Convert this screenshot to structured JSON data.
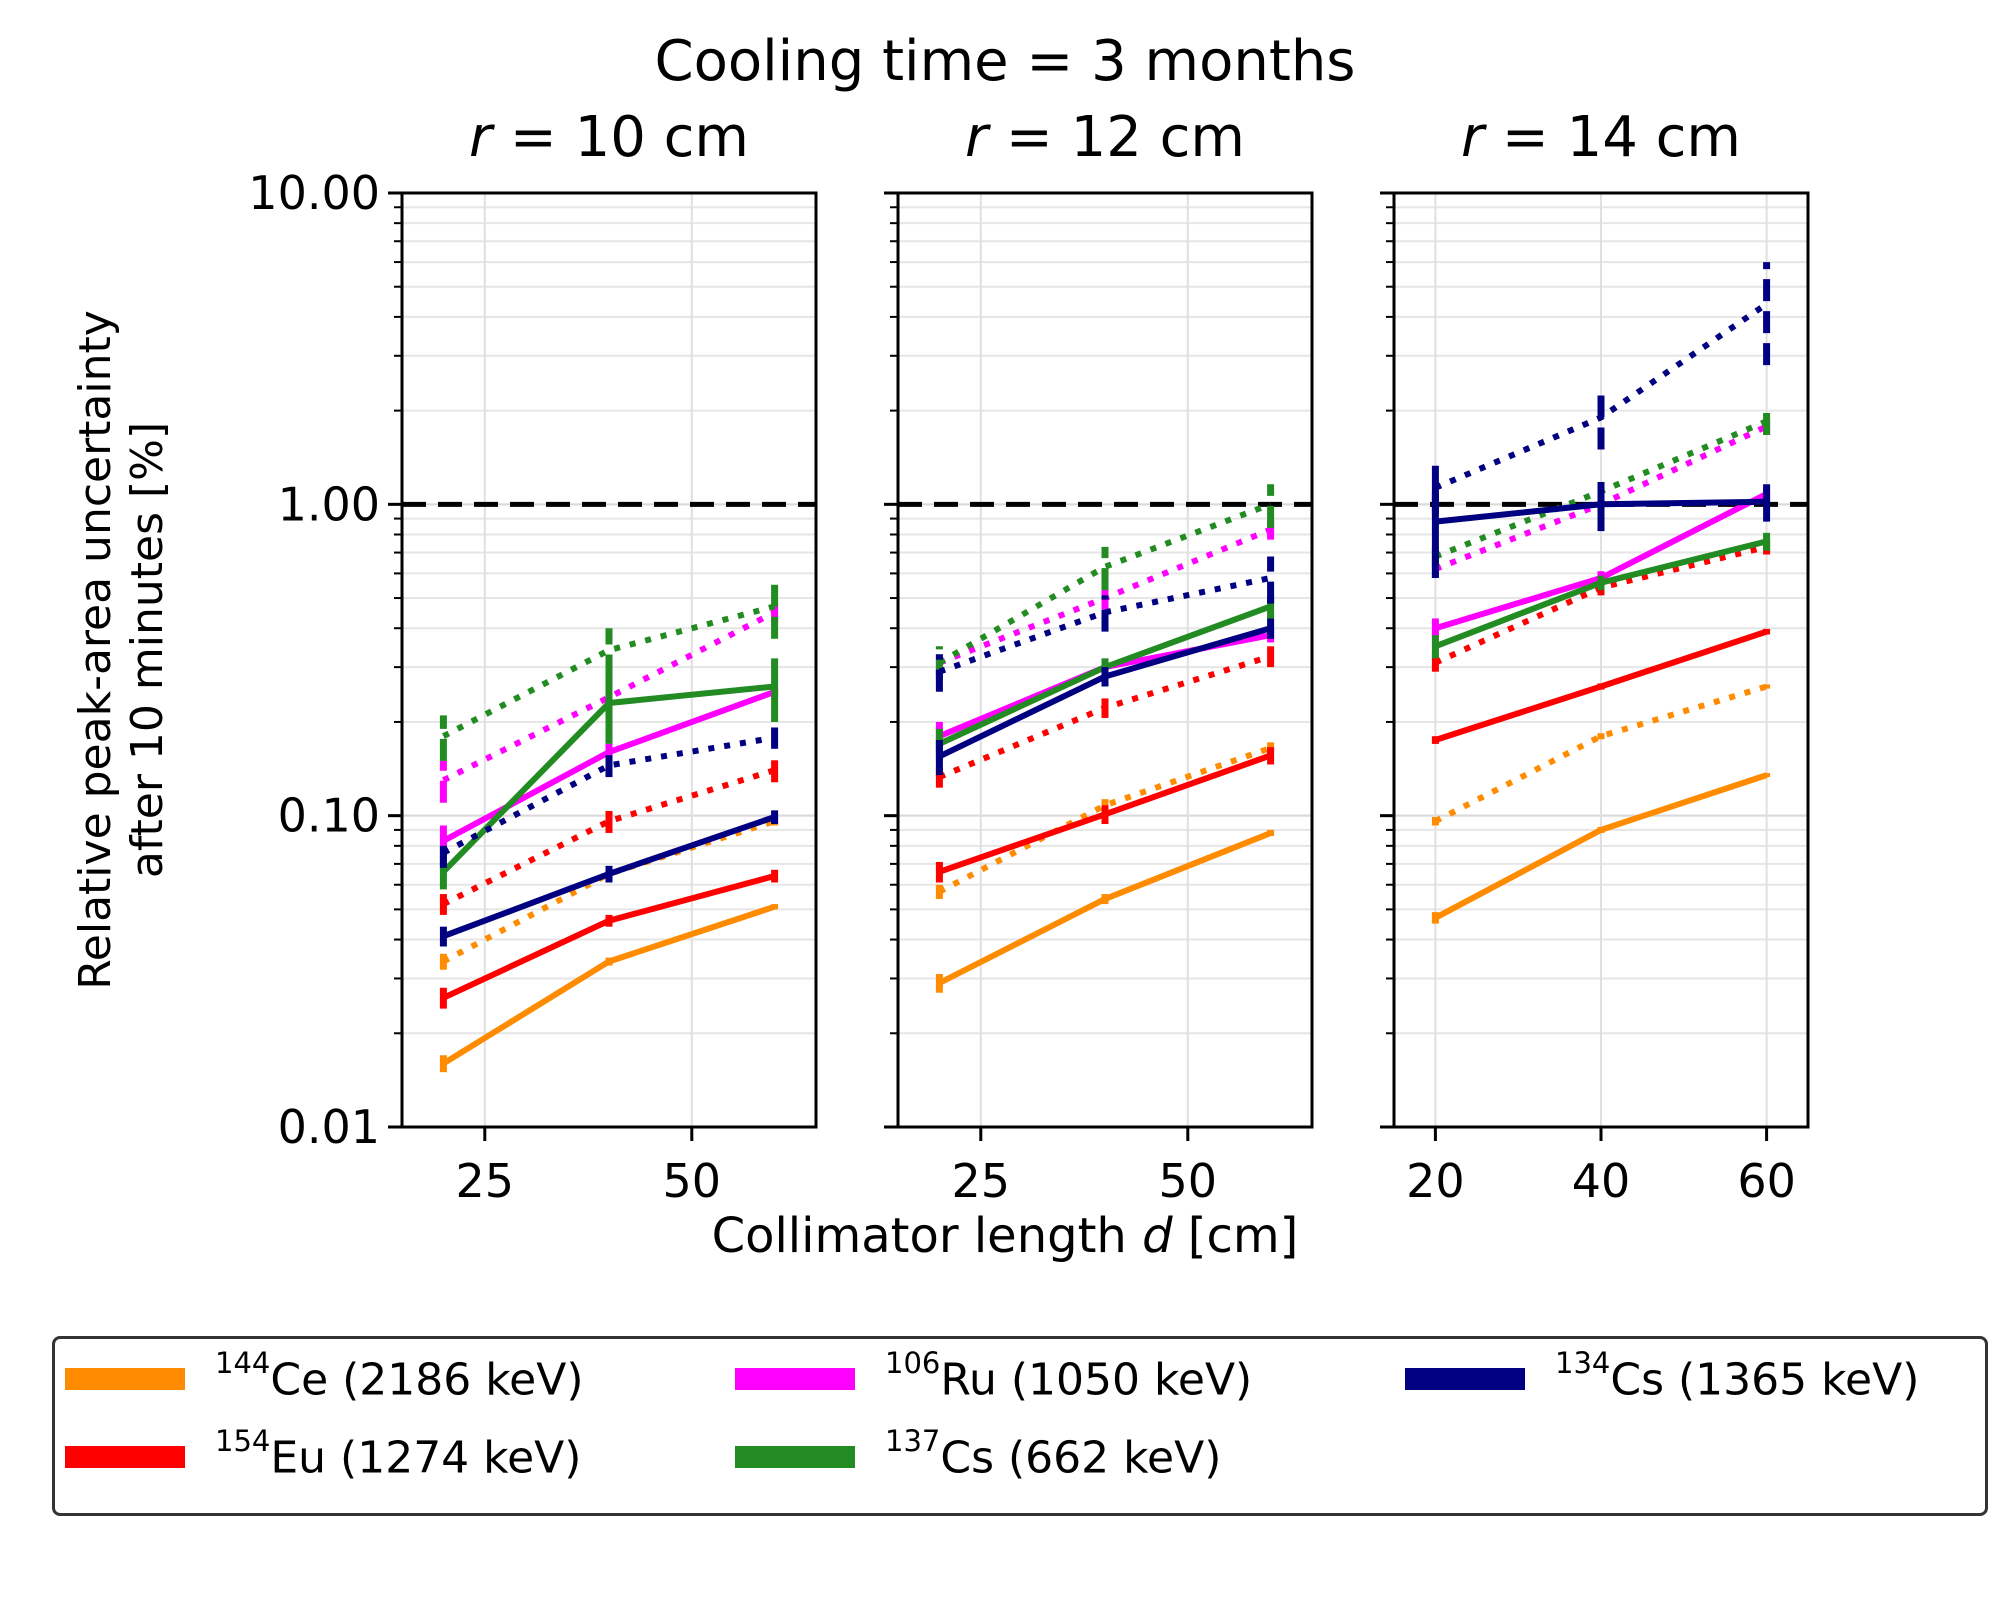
{
  "chart_data": {
    "type": "line",
    "title": "Cooling time = 3 months",
    "xlabel": "Collimator length d [cm]",
    "ylabel_line1": "Relative peak-area uncertainty",
    "ylabel_line2": "after 10 minutes [%]",
    "yscale": "log",
    "ylim": [
      0.01,
      10
    ],
    "y_ticks": [
      "0.01",
      "0.10",
      "1.00",
      "10.00"
    ],
    "reference_line": {
      "y": 1.0,
      "style": "dashed",
      "color": "#000000"
    },
    "grid": true,
    "legend_position": "bottom",
    "line_styles": {
      "solid": "solid",
      "dotted": "dotted"
    },
    "panels": [
      {
        "subtitle_prefix": "r",
        "subtitle_suffix": " = 10 cm",
        "x_ticks": [
          25,
          50
        ],
        "xlim": [
          15,
          65
        ],
        "series": [
          {
            "isotope": "Ce",
            "style": "solid",
            "x": [
              20,
              40,
              60
            ],
            "y": [
              0.016,
              0.034,
              0.051
            ],
            "err": [
              0.001,
              0.001,
              0.001
            ]
          },
          {
            "isotope": "Ce",
            "style": "dotted",
            "x": [
              20,
              40,
              60
            ],
            "y": [
              0.034,
              0.065,
              0.096
            ],
            "err": [
              0.002,
              0.003,
              0.003
            ]
          },
          {
            "isotope": "Eu",
            "style": "solid",
            "x": [
              20,
              40,
              60
            ],
            "y": [
              0.026,
              0.046,
              0.064
            ],
            "err": [
              0.002,
              0.002,
              0.003
            ]
          },
          {
            "isotope": "Eu",
            "style": "dotted",
            "x": [
              20,
              40,
              60
            ],
            "y": [
              0.052,
              0.096,
              0.14
            ],
            "err": [
              0.004,
              0.008,
              0.012
            ]
          },
          {
            "isotope": "Ru",
            "style": "solid",
            "x": [
              20,
              40,
              60
            ],
            "y": [
              0.083,
              0.16,
              0.25
            ],
            "err": [
              0.01,
              0.01,
              0.01
            ]
          },
          {
            "isotope": "Ru",
            "style": "dotted",
            "x": [
              20,
              40,
              60
            ],
            "y": [
              0.13,
              0.24,
              0.45
            ],
            "err": [
              0.02,
              0.02,
              0.03
            ]
          },
          {
            "isotope": "Cs137",
            "style": "solid",
            "x": [
              20,
              40,
              60
            ],
            "y": [
              0.066,
              0.23,
              0.26
            ],
            "err": [
              0.008,
              0.06,
              0.06
            ]
          },
          {
            "isotope": "Cs137",
            "style": "dotted",
            "x": [
              20,
              40,
              60
            ],
            "y": [
              0.18,
              0.34,
              0.47
            ],
            "err": [
              0.03,
              0.06,
              0.1
            ]
          },
          {
            "isotope": "Cs134",
            "style": "solid",
            "x": [
              20,
              40,
              60
            ],
            "y": [
              0.041,
              0.065,
              0.099
            ],
            "err": [
              0.003,
              0.004,
              0.005
            ]
          },
          {
            "isotope": "Cs134",
            "style": "dotted",
            "x": [
              20,
              40,
              60
            ],
            "y": [
              0.076,
              0.145,
              0.178
            ],
            "err": [
              0.008,
              0.012,
              0.014
            ]
          }
        ]
      },
      {
        "subtitle_prefix": "r",
        "subtitle_suffix": " = 12 cm",
        "x_ticks": [
          25,
          50
        ],
        "xlim": [
          15,
          65
        ],
        "series": [
          {
            "isotope": "Ce",
            "style": "solid",
            "x": [
              20,
              40,
              60
            ],
            "y": [
              0.029,
              0.054,
              0.088
            ],
            "err": [
              0.002,
              0.002,
              0.002
            ]
          },
          {
            "isotope": "Ce",
            "style": "dotted",
            "x": [
              20,
              40,
              60
            ],
            "y": [
              0.057,
              0.108,
              0.165
            ],
            "err": [
              0.003,
              0.005,
              0.007
            ]
          },
          {
            "isotope": "Eu",
            "style": "solid",
            "x": [
              20,
              40,
              60
            ],
            "y": [
              0.066,
              0.101,
              0.156
            ],
            "err": [
              0.005,
              0.007,
              0.01
            ]
          },
          {
            "isotope": "Eu",
            "style": "dotted",
            "x": [
              20,
              40,
              60
            ],
            "y": [
              0.133,
              0.222,
              0.325
            ],
            "err": [
              0.01,
              0.016,
              0.025
            ]
          },
          {
            "isotope": "Ru",
            "style": "solid",
            "x": [
              20,
              40,
              60
            ],
            "y": [
              0.18,
              0.3,
              0.38
            ],
            "err": [
              0.02,
              0.02,
              0.02
            ]
          },
          {
            "isotope": "Ru",
            "style": "dotted",
            "x": [
              20,
              40,
              60
            ],
            "y": [
              0.31,
              0.5,
              0.83
            ],
            "err": [
              0.03,
              0.04,
              0.06
            ]
          },
          {
            "isotope": "Cs137",
            "style": "solid",
            "x": [
              20,
              40,
              60
            ],
            "y": [
              0.17,
              0.3,
              0.47
            ],
            "err": [
              0.02,
              0.02,
              0.04
            ]
          },
          {
            "isotope": "Cs137",
            "style": "dotted",
            "x": [
              20,
              40,
              60
            ],
            "y": [
              0.31,
              0.63,
              1.0
            ],
            "err": [
              0.04,
              0.1,
              0.16
            ]
          },
          {
            "isotope": "Cs134",
            "style": "solid",
            "x": [
              20,
              40,
              60
            ],
            "y": [
              0.155,
              0.28,
              0.4
            ],
            "err": [
              0.02,
              0.02,
              0.03
            ]
          },
          {
            "isotope": "Cs134",
            "style": "dotted",
            "x": [
              20,
              40,
              60
            ],
            "y": [
              0.29,
              0.45,
              0.58
            ],
            "err": [
              0.04,
              0.06,
              0.1
            ]
          }
        ]
      },
      {
        "subtitle_prefix": "r",
        "subtitle_suffix": " = 14 cm",
        "x_ticks": [
          20,
          40,
          60
        ],
        "xlim": [
          15,
          65
        ],
        "series": [
          {
            "isotope": "Ce",
            "style": "solid",
            "x": [
              20,
              40,
              60
            ],
            "y": [
              0.047,
              0.09,
              0.135
            ],
            "err": [
              0.002,
              0.002,
              0.002
            ]
          },
          {
            "isotope": "Ce",
            "style": "dotted",
            "x": [
              20,
              40,
              60
            ],
            "y": [
              0.096,
              0.18,
              0.26
            ],
            "err": [
              0.003,
              0.004,
              0.004
            ]
          },
          {
            "isotope": "Eu",
            "style": "solid",
            "x": [
              20,
              40,
              60
            ],
            "y": [
              0.175,
              0.26,
              0.39
            ],
            "err": [
              0.005,
              0.006,
              0.008
            ]
          },
          {
            "isotope": "Eu",
            "style": "dotted",
            "x": [
              20,
              40,
              60
            ],
            "y": [
              0.31,
              0.54,
              0.73
            ],
            "err": [
              0.02,
              0.03,
              0.04
            ]
          },
          {
            "isotope": "Ru",
            "style": "solid",
            "x": [
              20,
              40,
              60
            ],
            "y": [
              0.4,
              0.58,
              1.08
            ],
            "err": [
              0.03,
              0.03,
              0.06
            ]
          },
          {
            "isotope": "Ru",
            "style": "dotted",
            "x": [
              20,
              40,
              60
            ],
            "y": [
              0.62,
              1.0,
              1.78
            ],
            "err": [
              0.04,
              0.05,
              0.1
            ]
          },
          {
            "isotope": "Cs137",
            "style": "solid",
            "x": [
              20,
              40,
              60
            ],
            "y": [
              0.35,
              0.56,
              0.76
            ],
            "err": [
              0.03,
              0.03,
              0.05
            ]
          },
          {
            "isotope": "Cs137",
            "style": "dotted",
            "x": [
              20,
              40,
              60
            ],
            "y": [
              0.68,
              1.1,
              1.85
            ],
            "err": [
              0.05,
              0.08,
              0.18
            ]
          },
          {
            "isotope": "Cs134",
            "style": "solid",
            "x": [
              20,
              40,
              60
            ],
            "y": [
              0.88,
              1.0,
              1.02
            ],
            "err": [
              0.3,
              0.18,
              0.14
            ]
          },
          {
            "isotope": "Cs134",
            "style": "dotted",
            "x": [
              20,
              40,
              60
            ],
            "y": [
              1.13,
              1.9,
              4.4
            ],
            "err": [
              0.2,
              0.4,
              1.6
            ]
          }
        ]
      }
    ],
    "legend": [
      {
        "key": "Ce",
        "mass": "144",
        "symbol": "Ce",
        "energy": " (2186 keV)",
        "color": "#ff8c00"
      },
      {
        "key": "Ru",
        "mass": "106",
        "symbol": "Ru",
        "energy": " (1050 keV)",
        "color": "#ff00ff"
      },
      {
        "key": "Cs134",
        "mass": "134",
        "symbol": "Cs",
        "energy": " (1365 keV)",
        "color": "#000080"
      },
      {
        "key": "Eu",
        "mass": "154",
        "symbol": "Eu",
        "energy": " (1274 keV)",
        "color": "#ff0000"
      },
      {
        "key": "Cs137",
        "mass": "137",
        "symbol": "Cs",
        "energy": " (662 keV)",
        "color": "#228b22"
      }
    ]
  }
}
